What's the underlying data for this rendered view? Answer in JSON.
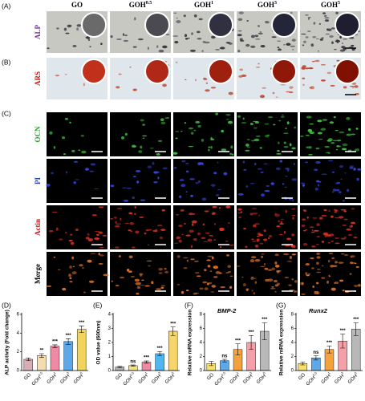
{
  "figure": {
    "panel_labels": [
      "(A)",
      "(B)",
      "(C)"
    ],
    "groups": [
      {
        "base": "GO"
      },
      {
        "base": "GOH",
        "sup": "0.5"
      },
      {
        "base": "GOH",
        "sup": "1"
      },
      {
        "base": "GOH",
        "sup": "3"
      },
      {
        "base": "GOH",
        "sup": "5"
      }
    ],
    "rows": [
      "ALP",
      "ARS",
      "OCN",
      "PI",
      "Actin",
      "Merge"
    ]
  },
  "chart_data": [
    {
      "type": "bar",
      "panel_label": "(D)",
      "ylabel": "ALP activity (Fold change)",
      "categories": [
        {
          "base": "GO"
        },
        {
          "base": "GOH",
          "sup": "0.5"
        },
        {
          "base": "GOH",
          "sup": "1"
        },
        {
          "base": "GOH",
          "sup": "3"
        },
        {
          "base": "GOH",
          "sup": "5"
        }
      ],
      "values": [
        1.2,
        1.6,
        2.6,
        3.1,
        4.4
      ],
      "errors": [
        0.15,
        0.2,
        0.15,
        0.3,
        0.35
      ],
      "annotations": [
        null,
        "**",
        "***",
        "***",
        "***"
      ],
      "colors": [
        "#d8aeb4",
        "#f3ddb0",
        "#f08aa4",
        "#5fa8e8",
        "#f2d45c"
      ],
      "ylim": [
        0,
        6
      ],
      "yticks": [
        0,
        2,
        4,
        6
      ]
    },
    {
      "type": "bar",
      "panel_label": "(E)",
      "ylabel": "OD value (600nm)",
      "categories": [
        {
          "base": "GO"
        },
        {
          "base": "GOH",
          "sup": "0.5"
        },
        {
          "base": "GOH",
          "sup": "1"
        },
        {
          "base": "GOH",
          "sup": "3"
        },
        {
          "base": "GOH",
          "sup": "5"
        }
      ],
      "values": [
        0.25,
        0.35,
        0.6,
        1.2,
        2.8
      ],
      "errors": [
        0.05,
        0.05,
        0.08,
        0.15,
        0.3
      ],
      "annotations": [
        null,
        "ns",
        "***",
        "***",
        "***"
      ],
      "colors": [
        "#b0b0b0",
        "#f5e08a",
        "#f08aa4",
        "#4fb6f0",
        "#f7d56a"
      ],
      "ylim": [
        0,
        4
      ],
      "yticks": [
        0,
        1,
        2,
        3,
        4
      ]
    },
    {
      "type": "bar",
      "panel_label": "(F)",
      "ylabel": "Relative mRNA expression",
      "title": "BMP-2",
      "categories": [
        {
          "base": "GO"
        },
        {
          "base": "GOH",
          "sup": "0.5"
        },
        {
          "base": "GOH",
          "sup": "1"
        },
        {
          "base": "GOH",
          "sup": "3"
        },
        {
          "base": "GOH",
          "sup": "5"
        }
      ],
      "values": [
        1.0,
        1.4,
        3.0,
        4.0,
        5.6
      ],
      "errors": [
        0.3,
        0.2,
        0.8,
        1.0,
        1.2
      ],
      "annotations": [
        null,
        "ns",
        "***",
        "***",
        "***"
      ],
      "colors": [
        "#f7e070",
        "#5fa8e8",
        "#f5a23c",
        "#f4a0a8",
        "#b8b8b8"
      ],
      "ylim": [
        0,
        8
      ],
      "yticks": [
        0,
        2,
        4,
        6,
        8
      ]
    },
    {
      "type": "bar",
      "panel_label": "(G)",
      "ylabel": "Relative mRNA expression",
      "title": "Runx2",
      "categories": [
        {
          "base": "GO"
        },
        {
          "base": "GOH",
          "sup": "0.5"
        },
        {
          "base": "GOH",
          "sup": "1"
        },
        {
          "base": "GOH",
          "sup": "3"
        },
        {
          "base": "GOH",
          "sup": "5"
        }
      ],
      "values": [
        1.0,
        1.8,
        3.0,
        4.2,
        5.9
      ],
      "errors": [
        0.2,
        0.3,
        0.5,
        1.0,
        0.9
      ],
      "annotations": [
        null,
        "ns",
        "***",
        "***",
        "***"
      ],
      "colors": [
        "#f7e070",
        "#5fa8e8",
        "#f5a23c",
        "#f4a0a8",
        "#b8b8b8"
      ],
      "ylim": [
        0,
        8
      ],
      "yticks": [
        0,
        2,
        4,
        6,
        8
      ]
    }
  ]
}
